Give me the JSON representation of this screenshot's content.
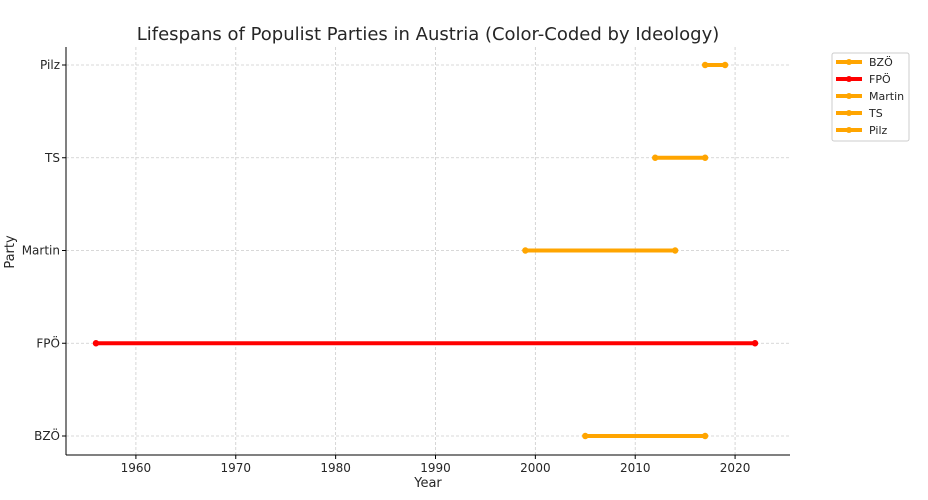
{
  "chart_data": {
    "type": "line",
    "title": "Lifespans of Populist Parties in Austria (Color-Coded by Ideology)",
    "xlabel": "Year",
    "ylabel": "Party",
    "xlim": [
      1953,
      2025.5
    ],
    "x_ticks": [
      1960,
      1970,
      1980,
      1990,
      2000,
      2010,
      2020
    ],
    "categories": [
      "BZÖ",
      "FPÖ",
      "Martin",
      "TS",
      "Pilz"
    ],
    "grid": true,
    "legend_position": "outside-top-right",
    "series": [
      {
        "name": "BZÖ",
        "start": 2005,
        "end": 2017,
        "color": "#FFA500"
      },
      {
        "name": "FPÖ",
        "start": 1956,
        "end": 2022,
        "color": "#FF0000"
      },
      {
        "name": "Martin",
        "start": 1999,
        "end": 2014,
        "color": "#FFA500"
      },
      {
        "name": "TS",
        "start": 2012,
        "end": 2017,
        "color": "#FFA500"
      },
      {
        "name": "Pilz",
        "start": 2017,
        "end": 2019,
        "color": "#FFA500"
      }
    ]
  }
}
